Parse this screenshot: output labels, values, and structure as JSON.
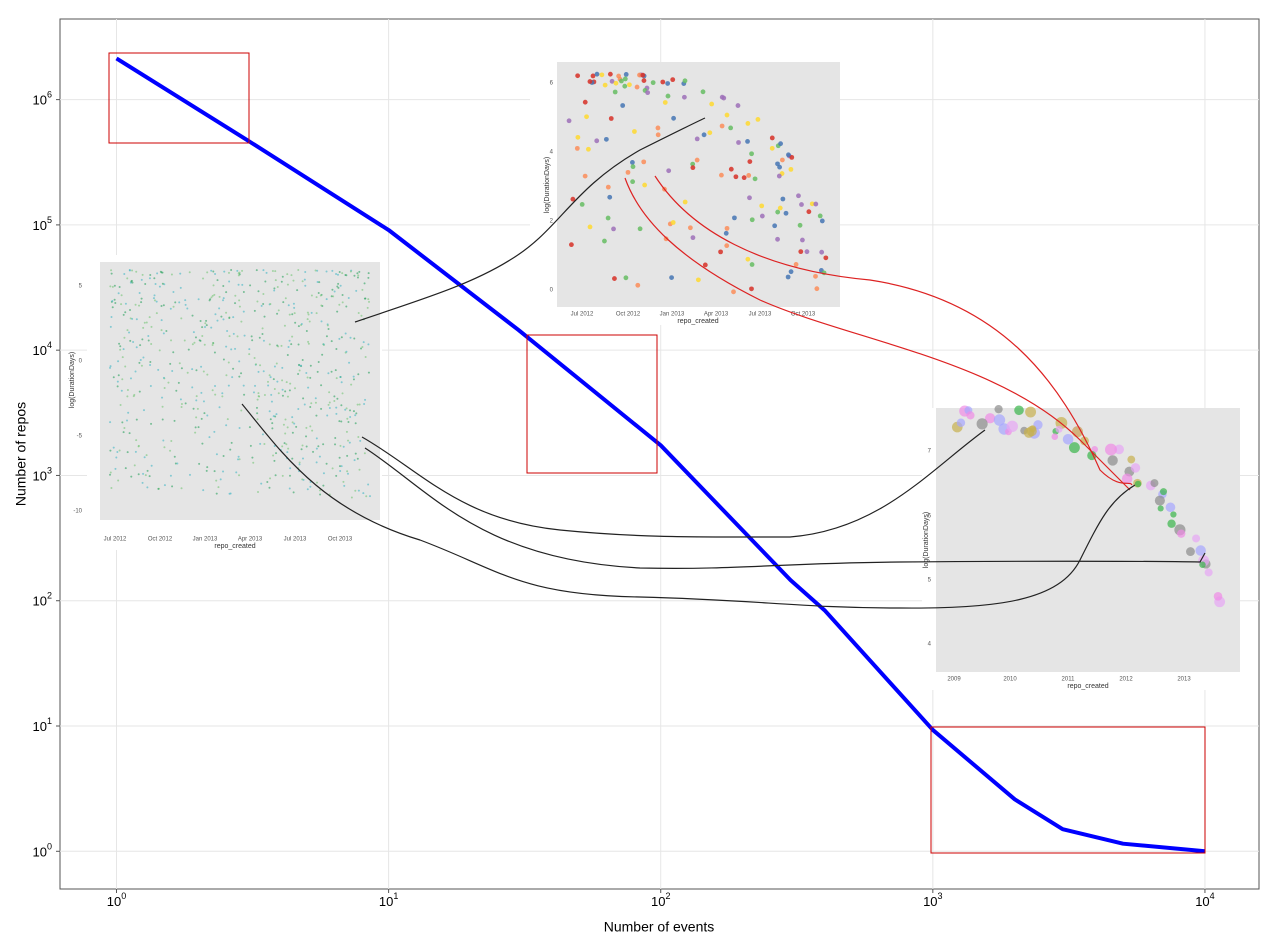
{
  "chart_data": {
    "type": "line",
    "x_label": "Number of events",
    "y_label": "Number of repos",
    "log_x": true,
    "log_y": true,
    "grid": true,
    "x": [
      1,
      3,
      10,
      30,
      100,
      300,
      400,
      1000,
      2000,
      3000,
      5000,
      10000
    ],
    "series": [
      {
        "color": "#0000ff",
        "values": [
          2130000,
          480000,
          91000,
          14500,
          1740,
          146,
          84,
          9.3,
          2.6,
          1.5,
          1.15,
          1
        ]
      }
    ],
    "xlim": [
      0.62,
      15800
    ],
    "ylim": [
      0.5,
      4400000
    ],
    "xticks": [
      {
        "value": 1,
        "label": "10^0"
      },
      {
        "value": 10,
        "label": "10^1"
      },
      {
        "value": 100,
        "label": "10^2"
      },
      {
        "value": 1000,
        "label": "10^3"
      },
      {
        "value": 10000,
        "label": "10^4"
      }
    ],
    "yticks": [
      {
        "value": 1,
        "label": "10^0"
      },
      {
        "value": 10,
        "label": "10^1"
      },
      {
        "value": 100,
        "label": "10^2"
      },
      {
        "value": 1000,
        "label": "10^3"
      },
      {
        "value": 10000,
        "label": "10^4"
      },
      {
        "value": 100000,
        "label": "10^5"
      },
      {
        "value": 1000000,
        "label": "10^6"
      }
    ]
  },
  "insets": [
    {
      "x_label": "repo_created",
      "y_label": "log(DurationDays)",
      "xtick_labels": [
        "Jul 2012",
        "Oct 2012",
        "Jan 2013",
        "Apr 2013",
        "Jul 2013",
        "Oct 2013"
      ],
      "ytick_labels": [
        "5",
        "0",
        "-5",
        "-10"
      ]
    },
    {
      "x_label": "repo_created",
      "y_label": "log(DurationDays)",
      "xtick_labels": [
        "Jul 2012",
        "Oct 2012",
        "Jan 2013",
        "Apr 2013",
        "Jul 2013",
        "Oct 2013"
      ],
      "ytick_labels": [
        "6",
        "4",
        "2",
        "0"
      ]
    },
    {
      "x_label": "repo_created",
      "y_label": "log(DurationDays)",
      "xtick_labels": [
        "2009",
        "2010",
        "2011",
        "2012",
        "2013"
      ],
      "ytick_labels": [
        "7",
        "6",
        "5",
        "4"
      ]
    }
  ]
}
